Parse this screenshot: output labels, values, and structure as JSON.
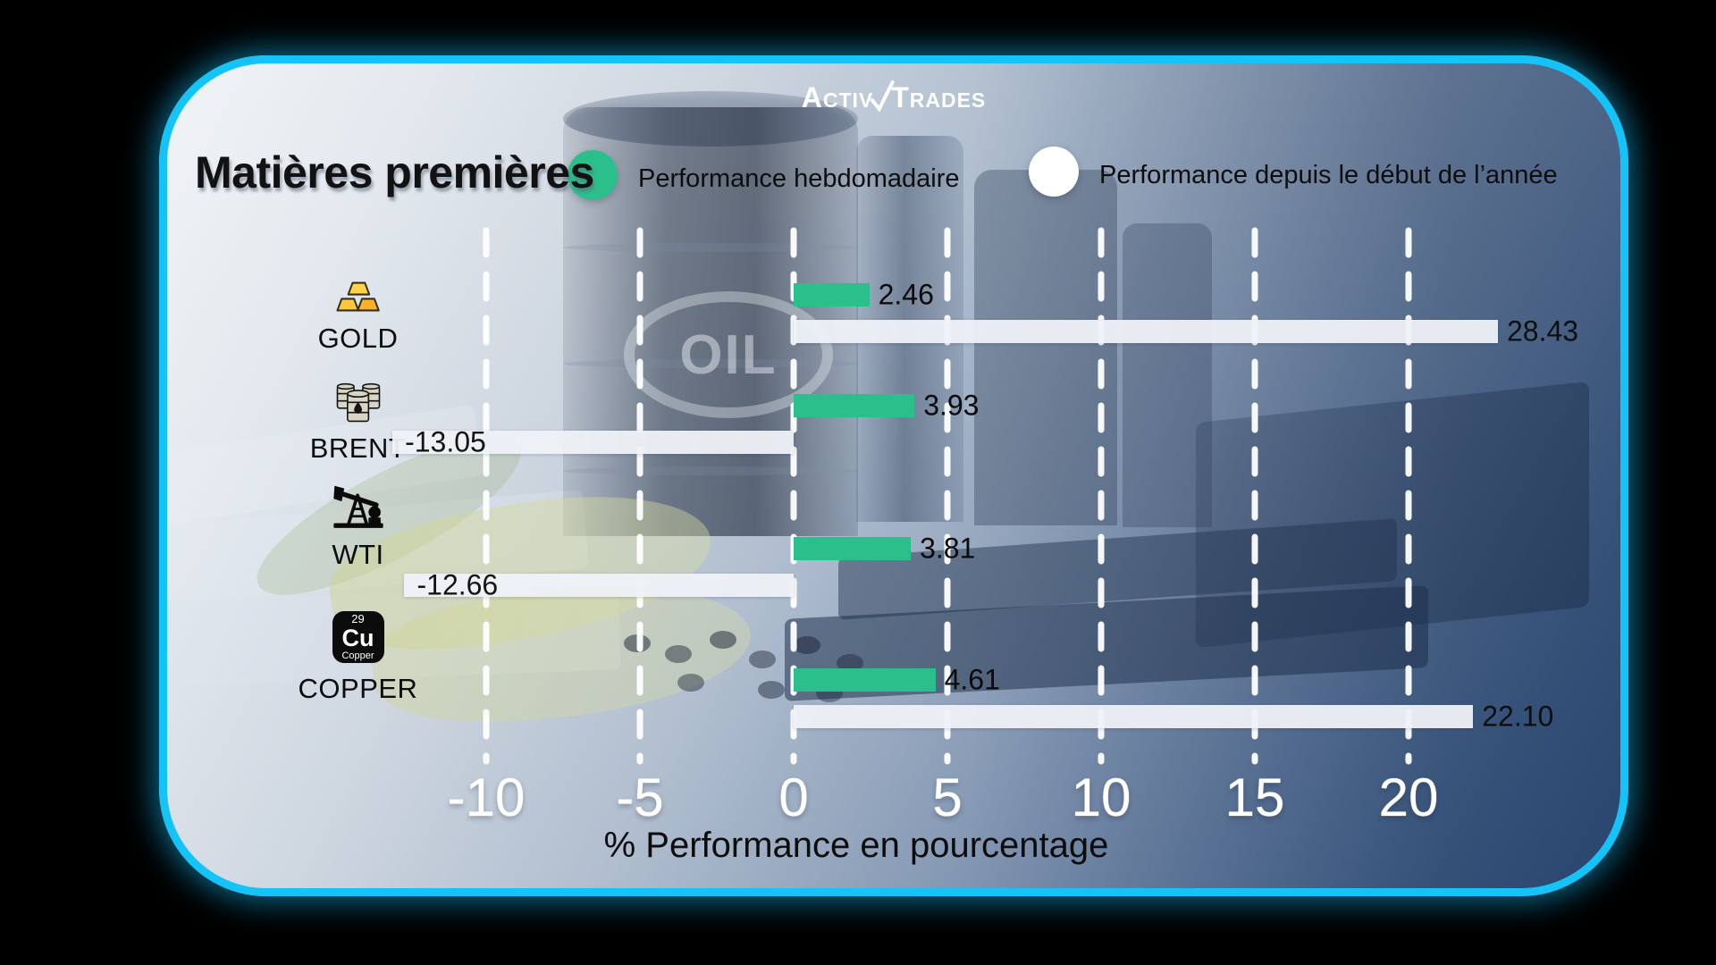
{
  "brand": {
    "logo_left": "Activ",
    "logo_right": "Trades"
  },
  "header": {
    "title": "Matières premières"
  },
  "legend": [
    {
      "label": "Performance hebdomadaire",
      "color": "#2BBF8C"
    },
    {
      "label": "Performance depuis le début de l’année",
      "color": "#FFFFFF"
    }
  ],
  "background": {
    "oil_text": "OIL"
  },
  "copper_icon": {
    "number": "29",
    "symbol": "Cu",
    "name": "Copper"
  },
  "colors": {
    "accent_border": "#14C3F7",
    "green": "#2BBF8C",
    "bar_white": "#EFF2F7"
  },
  "chart_data": {
    "type": "bar",
    "orientation": "horizontal",
    "title": "Matières premières",
    "categories": [
      "GOLD",
      "BRENT",
      "WTI",
      "COPPER"
    ],
    "icons": [
      "gold-bars-icon",
      "oil-barrels-icon",
      "oil-pump-icon",
      "copper-element-icon"
    ],
    "series": [
      {
        "name": "Performance hebdomadaire",
        "color": "#2BBF8C",
        "values": [
          2.46,
          3.93,
          3.81,
          4.61
        ],
        "labels": [
          "2.46",
          "3.93",
          "3.81",
          "4.61"
        ]
      },
      {
        "name": "Performance depuis le début de l’année",
        "color": "#EFF2F7",
        "values": [
          28.43,
          -13.05,
          -12.66,
          22.1
        ],
        "labels": [
          "28.43",
          "-13.05",
          "-12.66",
          "22.10"
        ]
      }
    ],
    "x_ticks": [
      -10,
      -5,
      0,
      5,
      10,
      15,
      20
    ],
    "xlim": [
      -13,
      23.5
    ],
    "xlabel": "% Performance en pourcentage",
    "grid": "dashed-vertical-white",
    "legend_position": "top"
  }
}
